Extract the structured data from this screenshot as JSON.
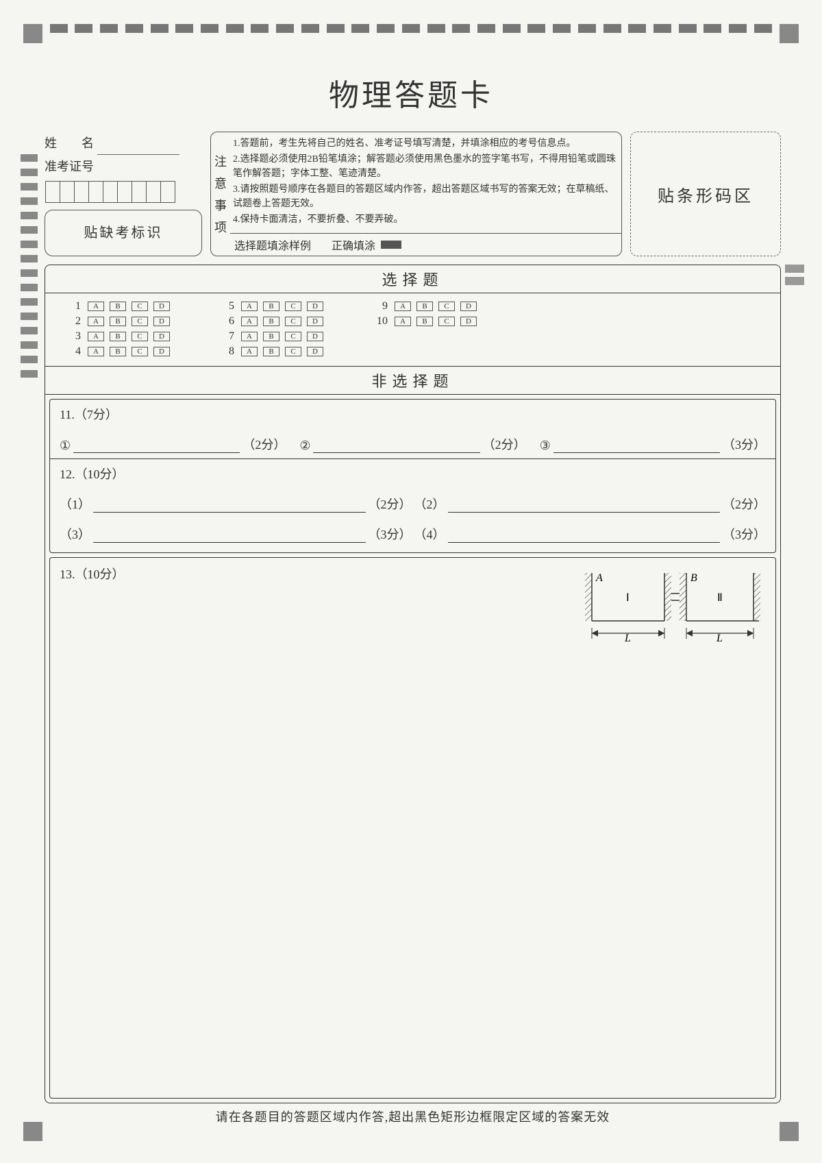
{
  "title": "物理答题卡",
  "student": {
    "name_label": "姓　　名",
    "id_label": "准考证号",
    "id_cell_count": 9,
    "absent_label": "贴缺考标识"
  },
  "notice": {
    "side_label": [
      "注",
      "意",
      "事",
      "项"
    ],
    "items": [
      "1.答题前，考生先将自己的姓名、准考证号填写清楚，并填涂相应的考号信息点。",
      "2.选择题必须使用2B铅笔填涂；解答题必须使用黑色墨水的签字笔书写，不得用铅笔或圆珠笔作解答题；字体工整、笔迹清楚。",
      "3.请按照题号顺序在各题目的答题区域内作答，超出答题区域书写的答案无效；在草稿纸、试题卷上答题无效。",
      "4.保持卡面清洁，不要折叠、不要弄破。"
    ],
    "example_label": "选择题填涂样例",
    "example_correct": "正确填涂"
  },
  "barcode_label": "贴条形码区",
  "mc": {
    "title": "选择题",
    "options": [
      "A",
      "B",
      "C",
      "D"
    ],
    "columns": [
      [
        1,
        2,
        3,
        4
      ],
      [
        5,
        6,
        7,
        8
      ],
      [
        9,
        10
      ]
    ]
  },
  "frq": {
    "title": "非选择题",
    "q11": {
      "label": "11.（7分）",
      "parts": [
        {
          "num": "①",
          "pts": "（2分）"
        },
        {
          "num": "②",
          "pts": "（2分）"
        },
        {
          "num": "③",
          "pts": "（3分）"
        }
      ]
    },
    "q12": {
      "label": "12.（10分）",
      "parts": [
        {
          "num": "（1）",
          "pts": "（2分）"
        },
        {
          "num": "（2）",
          "pts": "（2分）"
        },
        {
          "num": "（3）",
          "pts": "（3分）"
        },
        {
          "num": "（4）",
          "pts": "（3分）"
        }
      ]
    },
    "q13": {
      "label": "13.（10分）",
      "diagram": {
        "labels": {
          "A": "A",
          "B": "B",
          "I": "Ⅰ",
          "II": "Ⅱ",
          "L": "L"
        },
        "colors": {
          "stroke": "#333"
        }
      }
    }
  },
  "footer": "请在各题目的答题区域内作答,超出黑色矩形边框限定区域的答案无效",
  "markers": {
    "top_count": 30,
    "left_count": 18,
    "color": "#888"
  }
}
